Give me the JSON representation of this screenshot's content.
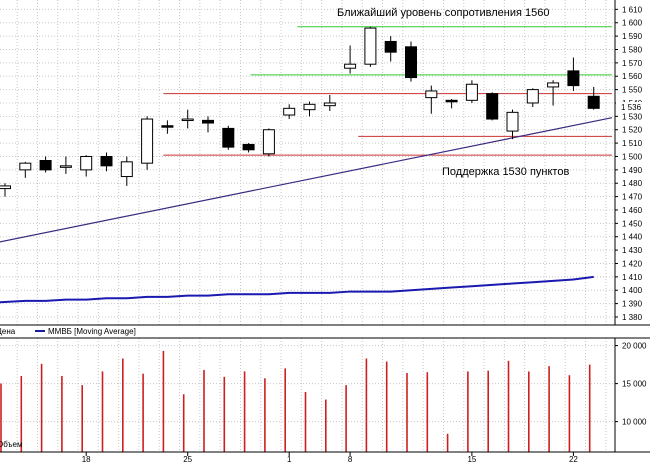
{
  "chart_data": [
    {
      "type": "candlestick",
      "annotations": {
        "resistance": "Ближайший уровень сопротивления 1560",
        "support": "Поддержка 1530 пунктов"
      },
      "legend": {
        "price_label": "Цена",
        "ma_label": "ММВБ [Moving Average]"
      },
      "y_ticks": [
        1610,
        1600,
        1590,
        1580,
        1570,
        1560,
        1550,
        1540,
        1530,
        1520,
        1510,
        1500,
        1490,
        1480,
        1470,
        1460,
        1450,
        1440,
        1430,
        1420,
        1410,
        1400,
        1390,
        1380
      ],
      "ylim": [
        1374,
        1617
      ],
      "last_price_label": "1 536",
      "x_ticks": [
        {
          "label": "18",
          "index": 4
        },
        {
          "label": "25",
          "index": 9
        },
        {
          "label": "1",
          "index": 14
        },
        {
          "label": "8",
          "index": 17
        },
        {
          "label": "15",
          "index": 23
        },
        {
          "label": "22",
          "index": 28
        }
      ],
      "candles": [
        {
          "o": 1476,
          "h": 1480,
          "l": 1470,
          "c": 1478
        },
        {
          "o": 1490,
          "h": 1496,
          "l": 1484,
          "c": 1495
        },
        {
          "o": 1497,
          "h": 1500,
          "l": 1488,
          "c": 1490
        },
        {
          "o": 1493,
          "h": 1500,
          "l": 1487,
          "c": 1493
        },
        {
          "o": 1490,
          "h": 1501,
          "l": 1485,
          "c": 1500
        },
        {
          "o": 1500,
          "h": 1503,
          "l": 1489,
          "c": 1493
        },
        {
          "o": 1485,
          "h": 1500,
          "l": 1478,
          "c": 1496
        },
        {
          "o": 1495,
          "h": 1530,
          "l": 1490,
          "c": 1528
        },
        {
          "o": 1523,
          "h": 1527,
          "l": 1517,
          "c": 1522
        },
        {
          "o": 1528,
          "h": 1535,
          "l": 1521,
          "c": 1528
        },
        {
          "o": 1527,
          "h": 1530,
          "l": 1518,
          "c": 1525
        },
        {
          "o": 1521,
          "h": 1523,
          "l": 1505,
          "c": 1507
        },
        {
          "o": 1509,
          "h": 1510,
          "l": 1503,
          "c": 1505
        },
        {
          "o": 1502,
          "h": 1521,
          "l": 1500,
          "c": 1520
        },
        {
          "o": 1531,
          "h": 1539,
          "l": 1528,
          "c": 1536
        },
        {
          "o": 1535,
          "h": 1541,
          "l": 1530,
          "c": 1539
        },
        {
          "o": 1538,
          "h": 1546,
          "l": 1534,
          "c": 1540
        },
        {
          "o": 1566,
          "h": 1583,
          "l": 1562,
          "c": 1569
        },
        {
          "o": 1569,
          "h": 1597,
          "l": 1567,
          "c": 1596
        },
        {
          "o": 1586,
          "h": 1590,
          "l": 1571,
          "c": 1578
        },
        {
          "o": 1582,
          "h": 1586,
          "l": 1556,
          "c": 1559
        },
        {
          "o": 1544,
          "h": 1553,
          "l": 1532,
          "c": 1549
        },
        {
          "o": 1542,
          "h": 1543,
          "l": 1536,
          "c": 1541
        },
        {
          "o": 1542,
          "h": 1557,
          "l": 1540,
          "c": 1554
        },
        {
          "o": 1547,
          "h": 1548,
          "l": 1527,
          "c": 1528
        },
        {
          "o": 1519,
          "h": 1535,
          "l": 1513,
          "c": 1533
        },
        {
          "o": 1540,
          "h": 1551,
          "l": 1537,
          "c": 1550
        },
        {
          "o": 1552,
          "h": 1557,
          "l": 1538,
          "c": 1555
        },
        {
          "o": 1564,
          "h": 1574,
          "l": 1549,
          "c": 1553
        },
        {
          "o": 1545,
          "h": 1552,
          "l": 1535,
          "c": 1536
        }
      ],
      "moving_average": [
        1391,
        1392,
        1392,
        1393,
        1393,
        1394,
        1394,
        1395,
        1395,
        1396,
        1396,
        1397,
        1397,
        1397,
        1398,
        1398,
        1398,
        1399,
        1399,
        1399,
        1400,
        1401,
        1402,
        1403,
        1404,
        1405,
        1406,
        1407,
        1408,
        1410
      ],
      "trendline": {
        "from": {
          "index": -0.3,
          "value": 1436
        },
        "to": {
          "index": 29.9,
          "value": 1529
        }
      },
      "levels": [
        {
          "value": 1597,
          "color": "#33cc33",
          "from_index": 14.4,
          "to_index": 29.9
        },
        {
          "value": 1561,
          "color": "#33cc33",
          "from_index": 12.1,
          "to_index": 29.9
        },
        {
          "value": 1547,
          "color": "#cc3333",
          "from_index": 7.8,
          "to_index": 29.9
        },
        {
          "value": 1515,
          "color": "#cc3333",
          "from_index": 17.4,
          "to_index": 29.9
        },
        {
          "value": 1501,
          "color": "#cc3333",
          "from_index": 7.8,
          "to_index": 29.9
        }
      ]
    },
    {
      "type": "bar",
      "legend_label": "Объем",
      "y_ticks_labels": [
        "20 000",
        "15 000",
        "10 000"
      ],
      "y_ticks": [
        20000,
        15000,
        10000
      ],
      "ylim": [
        6000,
        21000
      ],
      "values": [
        15000,
        16000,
        17600,
        16000,
        14800,
        16600,
        18300,
        16300,
        19300,
        13600,
        16800,
        15900,
        16600,
        15700,
        17000,
        13900,
        12900,
        14800,
        18300,
        17900,
        16400,
        16500,
        8400,
        16600,
        16700,
        18000,
        16600,
        17300,
        16100,
        17500
      ]
    }
  ]
}
